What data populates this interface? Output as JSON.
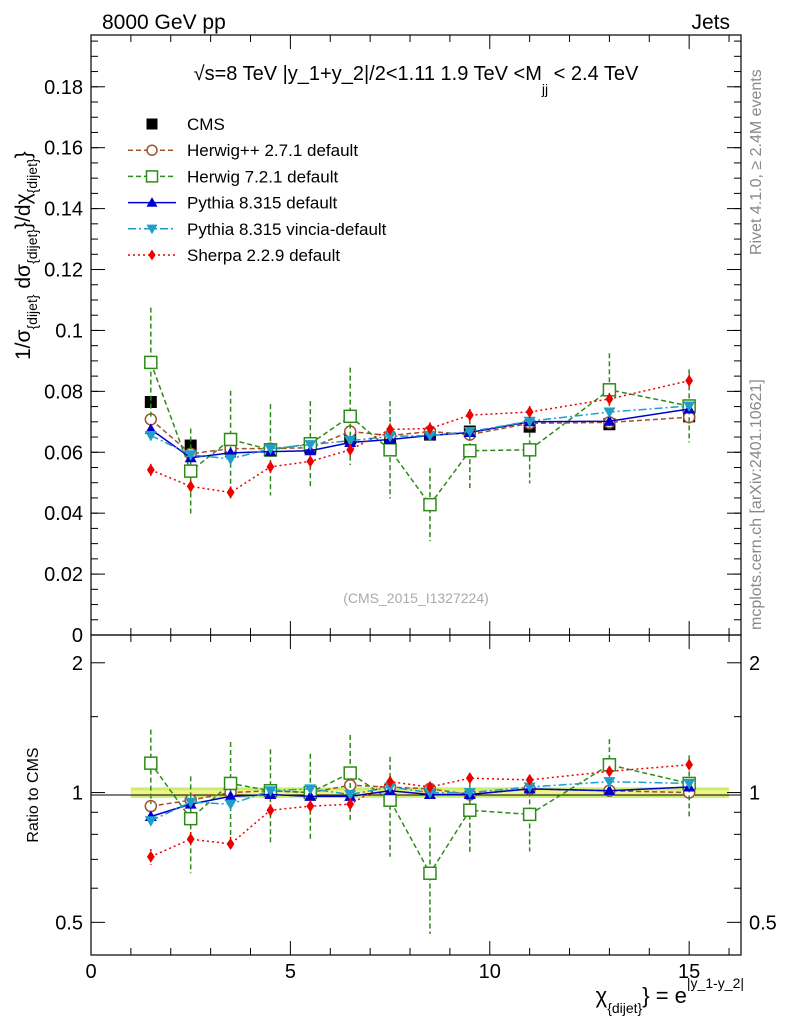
{
  "header": {
    "left": "8000 GeV pp",
    "right": "Jets"
  },
  "side_labels": {
    "rivet": "Rivet 4.1.0, ≥ 2.4M events",
    "mcplots": "mcplots.cern.ch [arXiv:2401.10621]"
  },
  "plot_title": "√s=8 TeV |y_1+y_2|/2<1.11 1.9 TeV <M_jj < 2.4 TeV",
  "analysis_id": "(CMS_2015_I1327224)",
  "colors": {
    "CMS": "#000000",
    "Herwig++ 2.7.1 default": "#a0522d",
    "Herwig 7.2.1 default": "#2e8b1a",
    "Pythia 8.315 default": "#0000cc",
    "Pythia 8.315 vincia-default": "#1e9ec8",
    "Sherpa 2.2.9 default": "#ee0000",
    "band_inner": "#f2f28a",
    "band_outer": "#c8f06e"
  },
  "chart_data": [
    {
      "type": "scatter",
      "panel": "main",
      "title": "√s=8 TeV |y_1+y_2|/2<1.11 1.9 TeV <M_jj < 2.4 TeV",
      "xlabel": "χ_{dijet} = e^{|y_1-y_2|}",
      "ylabel": "1/σ_{dijet} dσ_{dijet}/dχ_{dijet}",
      "xlim": [
        0,
        16.3
      ],
      "ylim": [
        0,
        0.197
      ],
      "x_ticks": [
        0,
        5,
        10,
        15
      ],
      "y_ticks": [
        0,
        0.02,
        0.04,
        0.06,
        0.08,
        0.1,
        0.12,
        0.14,
        0.16,
        0.18
      ],
      "y_tick_labels": [
        "0",
        "0.02",
        "0.04",
        "0.06",
        "0.08",
        "0.1",
        "0.12",
        "0.14",
        "0.16",
        "0.18"
      ],
      "x": [
        1.5,
        2.5,
        3.5,
        4.5,
        5.5,
        6.5,
        7.5,
        8.5,
        9.5,
        11,
        13,
        15
      ],
      "series": [
        {
          "name": "CMS",
          "marker": "square-filled",
          "line": "none",
          "values": [
            0.0765,
            0.0622,
            0.0612,
            0.0605,
            0.0615,
            0.0645,
            0.0635,
            0.0658,
            0.0668,
            0.0684,
            0.0692,
            0.0718
          ]
        },
        {
          "name": "Herwig++ 2.7.1 default",
          "marker": "circle-open",
          "line": "dashed",
          "values": [
            0.0708,
            0.0595,
            0.0612,
            0.0612,
            0.0615,
            0.0668,
            0.0655,
            0.0668,
            0.0658,
            0.0695,
            0.0698,
            0.0715
          ],
          "errors": [
            0.002,
            0.002,
            0.002,
            0.002,
            0.002,
            0.002,
            0.002,
            0.002,
            0.002,
            0.002,
            0.002,
            0.002
          ]
        },
        {
          "name": "Herwig 7.2.1 default",
          "marker": "square-open",
          "line": "dashed",
          "values": [
            0.0895,
            0.0538,
            0.0642,
            0.0608,
            0.0628,
            0.0718,
            0.0608,
            0.0428,
            0.0605,
            0.0608,
            0.0805,
            0.0752
          ],
          "errors": [
            0.018,
            0.014,
            0.016,
            0.015,
            0.014,
            0.016,
            0.016,
            0.012,
            0.013,
            0.011,
            0.012,
            0.012
          ]
        },
        {
          "name": "Pythia 8.315 default",
          "marker": "triangle-up",
          "line": "solid",
          "values": [
            0.0675,
            0.0582,
            0.0598,
            0.0602,
            0.0605,
            0.0632,
            0.0642,
            0.0655,
            0.0665,
            0.07,
            0.0702,
            0.0742
          ]
        },
        {
          "name": "Pythia 8.315 vincia-default",
          "marker": "triangle-down",
          "line": "dashdot",
          "values": [
            0.0655,
            0.0592,
            0.0578,
            0.0612,
            0.0625,
            0.0638,
            0.0652,
            0.0655,
            0.0668,
            0.0702,
            0.0732,
            0.0752
          ]
        },
        {
          "name": "Sherpa 2.2.9 default",
          "marker": "diamond",
          "line": "dotted",
          "values": [
            0.0542,
            0.0488,
            0.0468,
            0.0552,
            0.057,
            0.0608,
            0.0675,
            0.0678,
            0.0722,
            0.0732,
            0.0775,
            0.0835
          ],
          "errors": [
            0.002,
            0.002,
            0.002,
            0.002,
            0.002,
            0.002,
            0.002,
            0.002,
            0.002,
            0.002,
            0.002,
            0.002
          ]
        }
      ],
      "legend": [
        "CMS",
        "Herwig++ 2.7.1 default",
        "Herwig 7.2.1 default",
        "Pythia 8.315 default",
        "Pythia 8.315 vincia-default",
        "Sherpa 2.2.9 default"
      ],
      "legend_position": "top-left"
    },
    {
      "type": "scatter",
      "panel": "ratio",
      "ylabel": "Ratio to CMS",
      "yscale": "log",
      "ylim": [
        0.42,
        2.32
      ],
      "y_ticks": [
        0.5,
        1,
        2
      ],
      "y_tick_labels": [
        "0.5",
        "1",
        "2"
      ],
      "band_inner_halfwidth": 0.012,
      "band_outer_halfwidth": 0.028,
      "x": [
        1.5,
        2.5,
        3.5,
        4.5,
        5.5,
        6.5,
        7.5,
        8.5,
        9.5,
        11,
        13,
        15
      ],
      "series": [
        {
          "name": "Herwig++ 2.7.1 default",
          "values": [
            0.93,
            0.96,
            1.0,
            1.01,
            1.0,
            1.04,
            1.03,
            1.02,
            0.99,
            1.02,
            1.01,
            1.0
          ],
          "errors": [
            0.03,
            0.03,
            0.03,
            0.03,
            0.03,
            0.03,
            0.03,
            0.03,
            0.03,
            0.03,
            0.03,
            0.03
          ]
        },
        {
          "name": "Herwig 7.2.1 default",
          "values": [
            1.17,
            0.87,
            1.05,
            1.01,
            1.0,
            1.11,
            0.96,
            0.65,
            0.91,
            0.89,
            1.16,
            1.05
          ],
          "errors": [
            0.23,
            0.22,
            0.26,
            0.25,
            0.23,
            0.25,
            0.25,
            0.18,
            0.19,
            0.16,
            0.17,
            0.17
          ]
        },
        {
          "name": "Pythia 8.315 default",
          "values": [
            0.88,
            0.94,
            0.98,
            0.99,
            0.98,
            0.98,
            1.01,
            0.99,
            0.99,
            1.02,
            1.01,
            1.03
          ]
        },
        {
          "name": "Pythia 8.315 vincia-default",
          "values": [
            0.86,
            0.95,
            0.94,
            1.01,
            1.02,
            0.99,
            1.03,
            1.0,
            1.0,
            1.03,
            1.06,
            1.05
          ]
        },
        {
          "name": "Sherpa 2.2.9 default",
          "values": [
            0.71,
            0.78,
            0.76,
            0.91,
            0.93,
            0.94,
            1.06,
            1.03,
            1.08,
            1.07,
            1.12,
            1.16
          ],
          "errors": [
            0.03,
            0.03,
            0.03,
            0.03,
            0.03,
            0.03,
            0.03,
            0.03,
            0.03,
            0.03,
            0.03,
            0.03
          ]
        }
      ]
    }
  ]
}
